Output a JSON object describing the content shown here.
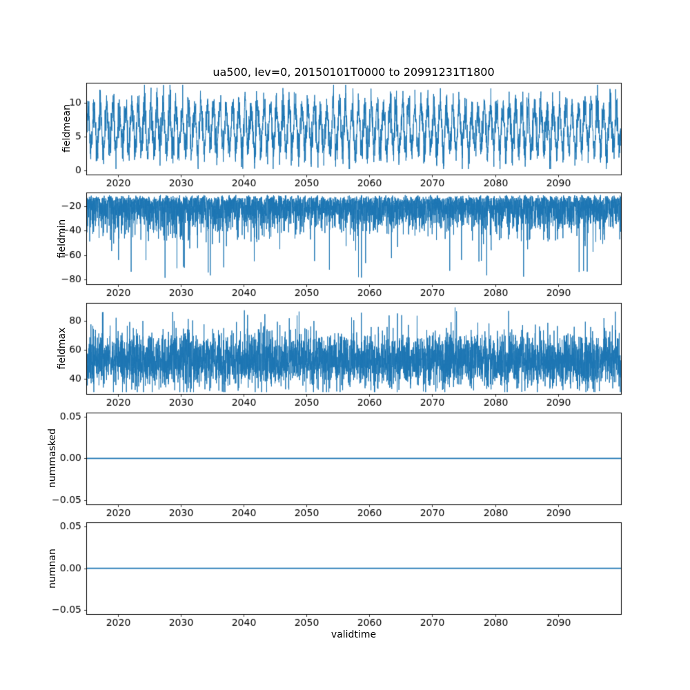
{
  "figure": {
    "title": "ua500, lev=0, 20150101T0000 to 20991231T1800",
    "xlabel": "validtime",
    "background": "#ffffff",
    "line_color": "#1f77b4",
    "x_min": 2015,
    "x_max": 2100,
    "xticks": {
      "values": [
        2020,
        2030,
        2040,
        2050,
        2060,
        2070,
        2080,
        2090
      ],
      "labels": [
        "2020",
        "2030",
        "2040",
        "2050",
        "2060",
        "2070",
        "2080",
        "2090"
      ]
    }
  },
  "chart_data": [
    {
      "type": "line",
      "ylabel": "fieldmean",
      "description": "Dense 6-hourly time series 2015-2099 with a strong annual cycle oscillating between about 0.5 and 12, centered near 6",
      "ylim": [
        -0.6,
        12.9
      ],
      "yticks": {
        "values": [
          0,
          5,
          10
        ],
        "labels": [
          "0",
          "5",
          "10"
        ]
      },
      "series": {
        "model": "seasonal_noise",
        "base": 6.2,
        "amp": 3.1,
        "noise": 1.4,
        "clip": [
          0.2,
          12.6
        ],
        "points": 3400,
        "linewidth": 1,
        "seed": 11
      }
    },
    {
      "type": "line",
      "ylabel": "fieldmin",
      "description": "Dense noisy band between about -10 and -45 with downward spikes reaching about -80",
      "ylim": [
        -84,
        -9
      ],
      "yticks": {
        "values": [
          -20,
          -40,
          -60,
          -80
        ],
        "labels": [
          "−20",
          "−40",
          "−60",
          "−80"
        ]
      },
      "series": {
        "model": "neg_spikes",
        "base": 12,
        "scale": 13,
        "seasonal_amp": 1.2,
        "spike_prob": 0.006,
        "spike_base": 55,
        "spike_span": 27,
        "clip": [
          -82,
          -10
        ],
        "points": 4800,
        "linewidth": 1,
        "seed": 23
      }
    },
    {
      "type": "line",
      "ylabel": "fieldmax",
      "description": "Dense noisy band between about 35 and 75 with upward spikes reaching about 90",
      "ylim": [
        29.5,
        92.5
      ],
      "yticks": {
        "values": [
          40,
          60,
          80
        ],
        "labels": [
          "40",
          "60",
          "80"
        ]
      },
      "series": {
        "model": "noise_band",
        "base": 53,
        "sigma": 9,
        "seasonal_amp": 1.5,
        "spike_prob": 0.006,
        "spike_base": 78,
        "spike_span": 12,
        "clip": [
          31,
          90
        ],
        "points": 4800,
        "linewidth": 1,
        "seed": 37
      }
    },
    {
      "type": "line",
      "ylabel": "nummasked",
      "description": "Constant zero line across the whole period",
      "ylim": [
        -0.055,
        0.055
      ],
      "yticks": {
        "values": [
          0.05,
          0,
          -0.05
        ],
        "labels": [
          "0.05",
          "0.00",
          "−0.05"
        ]
      },
      "series": {
        "model": "constant",
        "value": 0,
        "points": 2,
        "linewidth": 1.8,
        "seed": 1
      }
    },
    {
      "type": "line",
      "ylabel": "numnan",
      "description": "Constant zero line across the whole period",
      "ylim": [
        -0.055,
        0.055
      ],
      "yticks": {
        "values": [
          0.05,
          0,
          -0.05
        ],
        "labels": [
          "0.05",
          "0.00",
          "−0.05"
        ]
      },
      "series": {
        "model": "constant",
        "value": 0,
        "points": 2,
        "linewidth": 1.8,
        "seed": 2
      }
    }
  ]
}
